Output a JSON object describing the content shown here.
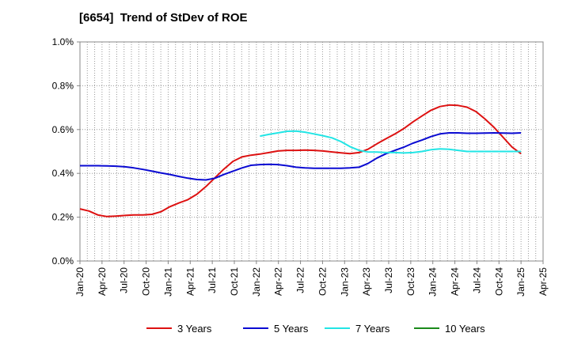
{
  "chart_data": {
    "type": "line",
    "title": "[6654]  Trend of StDev of ROE",
    "xlabel": "",
    "ylabel": "",
    "ylim": [
      0,
      1.0
    ],
    "y_ticks": [
      "0.0%",
      "0.2%",
      "0.4%",
      "0.6%",
      "0.8%",
      "1.0%"
    ],
    "x_ticks": [
      "Jan-20",
      "Apr-20",
      "Jul-20",
      "Oct-20",
      "Jan-21",
      "Apr-21",
      "Jul-21",
      "Oct-21",
      "Jan-22",
      "Apr-22",
      "Jul-22",
      "Oct-22",
      "Jan-23",
      "Apr-23",
      "Jul-23",
      "Oct-23",
      "Jan-24",
      "Apr-24",
      "Jul-24",
      "Oct-24",
      "Jan-25",
      "Apr-25"
    ],
    "grid": true,
    "legend_position": "bottom",
    "series": [
      {
        "name": "3 Years",
        "color": "#dd1111",
        "values": [
          0.238,
          0.228,
          0.21,
          0.203,
          0.205,
          0.208,
          0.21,
          0.21,
          0.213,
          0.225,
          0.248,
          0.265,
          0.28,
          0.305,
          0.34,
          0.38,
          0.42,
          0.455,
          0.475,
          0.483,
          0.488,
          0.495,
          0.502,
          0.505,
          0.505,
          0.506,
          0.505,
          0.502,
          0.498,
          0.494,
          0.49,
          0.495,
          0.51,
          0.535,
          0.558,
          0.58,
          0.605,
          0.635,
          0.662,
          0.688,
          0.705,
          0.712,
          0.71,
          0.702,
          0.682,
          0.648,
          0.61,
          0.565,
          0.52,
          0.49
        ]
      },
      {
        "name": "5 Years",
        "color": "#0a0ad2",
        "values": [
          0.435,
          0.435,
          0.435,
          0.434,
          0.433,
          0.43,
          0.425,
          0.418,
          0.41,
          0.402,
          0.395,
          0.386,
          0.378,
          0.372,
          0.37,
          0.378,
          0.395,
          0.41,
          0.425,
          0.437,
          0.44,
          0.441,
          0.44,
          0.435,
          0.428,
          0.425,
          0.423,
          0.423,
          0.423,
          0.423,
          0.425,
          0.428,
          0.445,
          0.47,
          0.49,
          0.505,
          0.52,
          0.538,
          0.552,
          0.568,
          0.58,
          0.585,
          0.585,
          0.583,
          0.583,
          0.584,
          0.585,
          0.584,
          0.583,
          0.585
        ]
      },
      {
        "name": "7 Years",
        "color": "#22e5e5",
        "values": [
          null,
          null,
          null,
          null,
          null,
          null,
          null,
          null,
          null,
          null,
          null,
          null,
          null,
          null,
          null,
          null,
          null,
          null,
          null,
          null,
          0.57,
          0.578,
          0.585,
          0.592,
          0.593,
          0.588,
          0.58,
          0.572,
          0.562,
          0.545,
          0.522,
          0.505,
          0.498,
          0.497,
          0.495,
          0.495,
          0.493,
          0.495,
          0.5,
          0.508,
          0.512,
          0.51,
          0.505,
          0.5,
          0.5,
          0.5,
          0.5,
          0.5,
          0.5,
          0.5
        ]
      },
      {
        "name": "10 Years",
        "color": "#1a8a1a",
        "values": []
      }
    ]
  }
}
